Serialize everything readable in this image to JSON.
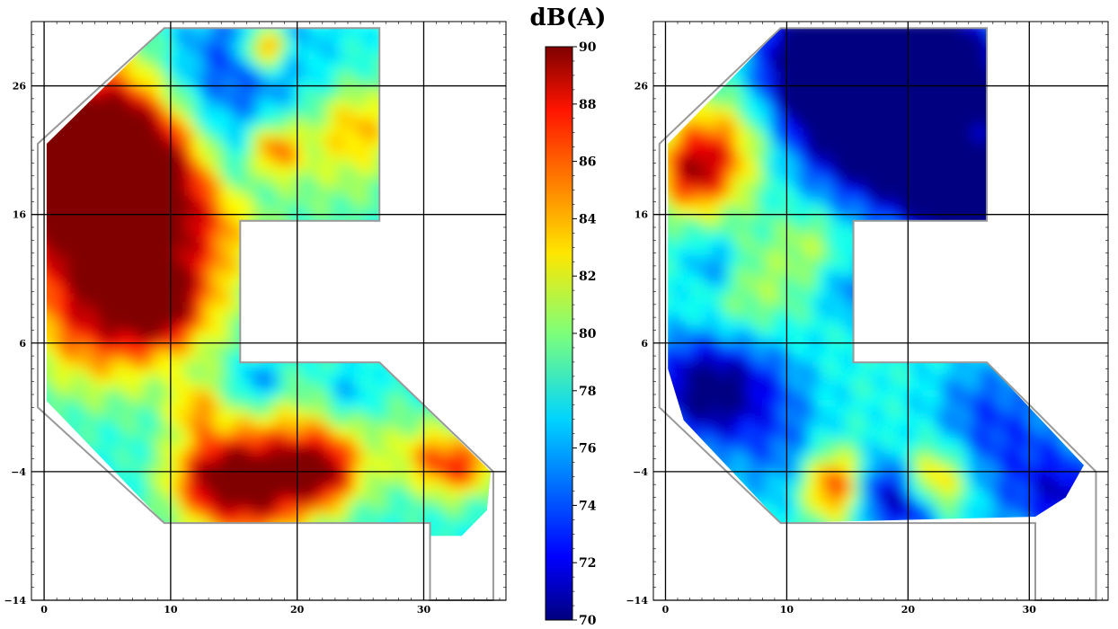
{
  "colorbar": {
    "label": "dB(A)",
    "min": 70,
    "max": 90,
    "ticks": [
      "90",
      "88",
      "86",
      "84",
      "82",
      "80",
      "78",
      "76",
      "74",
      "72",
      "70"
    ],
    "colormap": "jet"
  },
  "chart_data": [
    {
      "type": "heatmap",
      "panel": "left",
      "xlim": [
        -1,
        36.5
      ],
      "ylim": [
        -14,
        31
      ],
      "xticks": [
        "0",
        "10",
        "20",
        "30"
      ],
      "yticks": [
        "-14",
        "-4",
        "6",
        "16",
        "26"
      ],
      "grid": true,
      "outline": [
        [
          9.5,
          30.5
        ],
        [
          26.5,
          30.5
        ],
        [
          26.5,
          15.5
        ],
        [
          15.5,
          15.5
        ],
        [
          15.5,
          4.5
        ],
        [
          26.5,
          4.5
        ],
        [
          35.5,
          -4
        ],
        [
          35.5,
          -14
        ],
        [
          30.5,
          -14
        ],
        [
          30.5,
          -8
        ],
        [
          9.5,
          -8
        ],
        [
          -0.5,
          1
        ],
        [
          -0.5,
          21.5
        ]
      ],
      "fill_outline": [
        [
          9.5,
          30.5
        ],
        [
          26.5,
          30.5
        ],
        [
          26.5,
          15.5
        ],
        [
          15.5,
          15.5
        ],
        [
          15.5,
          4.5
        ],
        [
          26.5,
          4.5
        ],
        [
          35.3,
          -4
        ],
        [
          35,
          -7
        ],
        [
          33,
          -9
        ],
        [
          30.5,
          -9
        ],
        [
          30.5,
          -8
        ],
        [
          9.5,
          -8
        ],
        [
          0.2,
          1.5
        ],
        [
          0.2,
          21.5
        ]
      ],
      "base_db": 78,
      "hotspots": [
        {
          "x": 2,
          "y": 18,
          "r": 4,
          "db": 11
        },
        {
          "x": 6,
          "y": 15,
          "r": 5,
          "db": 7
        },
        {
          "x": 4,
          "y": 8,
          "r": 4,
          "db": 7
        },
        {
          "x": 8,
          "y": 20,
          "r": 3,
          "db": 9
        },
        {
          "x": 10,
          "y": 10,
          "r": 4,
          "db": 5
        },
        {
          "x": 3,
          "y": 21,
          "r": 3,
          "db": 8
        },
        {
          "x": 9,
          "y": 9,
          "r": 2,
          "db": 6
        },
        {
          "x": 13,
          "y": 16,
          "r": 3,
          "db": 4
        },
        {
          "x": 5,
          "y": 25,
          "r": 4,
          "db": 6
        },
        {
          "x": 17,
          "y": -5,
          "r": 3,
          "db": 11
        },
        {
          "x": 13,
          "y": -4.5,
          "r": 2.5,
          "db": 8
        },
        {
          "x": 22,
          "y": -4,
          "r": 2,
          "db": 9
        },
        {
          "x": 31,
          "y": -3.5,
          "r": 2,
          "db": 8
        },
        {
          "x": 34,
          "y": -3.5,
          "r": 1.5,
          "db": 5
        },
        {
          "x": 23,
          "y": 22,
          "r": 4,
          "db": 4
        },
        {
          "x": 18,
          "y": 21,
          "r": 1.5,
          "db": 8
        },
        {
          "x": 17.5,
          "y": 29,
          "r": 1.2,
          "db": 10
        },
        {
          "x": 25,
          "y": 23,
          "r": 2,
          "db": 3
        },
        {
          "x": 20,
          "y": -1,
          "r": 3,
          "db": 3
        },
        {
          "x": 26,
          "y": -2,
          "r": 3,
          "db": 2
        },
        {
          "x": 14,
          "y": 27,
          "r": 4,
          "db": -4
        },
        {
          "x": 20,
          "y": 27,
          "r": 4,
          "db": -2
        },
        {
          "x": 16,
          "y": 20,
          "r": 2,
          "db": -3
        },
        {
          "x": 17,
          "y": 3,
          "r": 1.3,
          "db": -4
        },
        {
          "x": 24,
          "y": 2,
          "r": 1.5,
          "db": -3
        },
        {
          "x": 30,
          "y": -5,
          "r": 1.5,
          "db": -2
        },
        {
          "x": 12,
          "y": 1,
          "r": 1.5,
          "db": 5
        }
      ]
    },
    {
      "type": "heatmap",
      "panel": "right",
      "xlim": [
        -1,
        36.5
      ],
      "ylim": [
        -14,
        31
      ],
      "xticks": [
        "0",
        "10",
        "20",
        "30"
      ],
      "yticks": [
        "-14",
        "-4",
        "6",
        "16",
        "26"
      ],
      "grid": true,
      "outline": [
        [
          9.5,
          30.5
        ],
        [
          26.5,
          30.5
        ],
        [
          26.5,
          15.5
        ],
        [
          15.5,
          15.5
        ],
        [
          15.5,
          4.5
        ],
        [
          26.5,
          4.5
        ],
        [
          35.5,
          -4
        ],
        [
          35.5,
          -14
        ],
        [
          30.5,
          -14
        ],
        [
          30.5,
          -8
        ],
        [
          9.5,
          -8
        ],
        [
          -0.5,
          1
        ],
        [
          -0.5,
          21.5
        ]
      ],
      "fill_outline": [
        [
          9.5,
          30.5
        ],
        [
          26.5,
          30.5
        ],
        [
          26.5,
          15.5
        ],
        [
          15.5,
          15.5
        ],
        [
          15.5,
          4.5
        ],
        [
          26.5,
          4.5
        ],
        [
          34.5,
          -3.5
        ],
        [
          33,
          -6
        ],
        [
          30.5,
          -7.5
        ],
        [
          9.5,
          -8
        ],
        [
          1.5,
          0
        ],
        [
          0.2,
          4
        ],
        [
          0.2,
          21.5
        ]
      ],
      "base_db": 78,
      "hotspots": [
        {
          "x": 17,
          "y": 26,
          "r": 5,
          "db": -12
        },
        {
          "x": 22,
          "y": 24,
          "r": 5,
          "db": -12
        },
        {
          "x": 13,
          "y": 28,
          "r": 3,
          "db": -10
        },
        {
          "x": 25,
          "y": 18,
          "r": 3,
          "db": -10
        },
        {
          "x": 4,
          "y": 21,
          "r": 3,
          "db": 8
        },
        {
          "x": 2,
          "y": 19,
          "r": 2,
          "db": 6
        },
        {
          "x": 25,
          "y": 22,
          "r": 1.5,
          "db": 8
        },
        {
          "x": 14,
          "y": -5,
          "r": 2,
          "db": 10
        },
        {
          "x": 22,
          "y": -5,
          "r": 2,
          "db": 8
        },
        {
          "x": 18,
          "y": -5.5,
          "r": 2,
          "db": -8
        },
        {
          "x": 21,
          "y": -7,
          "r": 1.5,
          "db": -6
        },
        {
          "x": 2,
          "y": 3,
          "r": 3,
          "db": -4
        },
        {
          "x": 4,
          "y": 2,
          "r": 3,
          "db": -5
        },
        {
          "x": 8,
          "y": 3,
          "r": 3,
          "db": -3
        },
        {
          "x": 30,
          "y": -4,
          "r": 4,
          "db": -4
        },
        {
          "x": 33,
          "y": -6,
          "r": 2,
          "db": -4
        },
        {
          "x": 26,
          "y": 1,
          "r": 3,
          "db": -3
        },
        {
          "x": 10,
          "y": -3,
          "r": 3,
          "db": -3
        },
        {
          "x": 7,
          "y": 10,
          "r": 3,
          "db": 3
        },
        {
          "x": 12,
          "y": 14,
          "r": 2,
          "db": 3
        },
        {
          "x": 15,
          "y": 10,
          "r": 1.5,
          "db": -3
        },
        {
          "x": 4,
          "y": 12,
          "r": 1.5,
          "db": -4
        }
      ]
    }
  ]
}
